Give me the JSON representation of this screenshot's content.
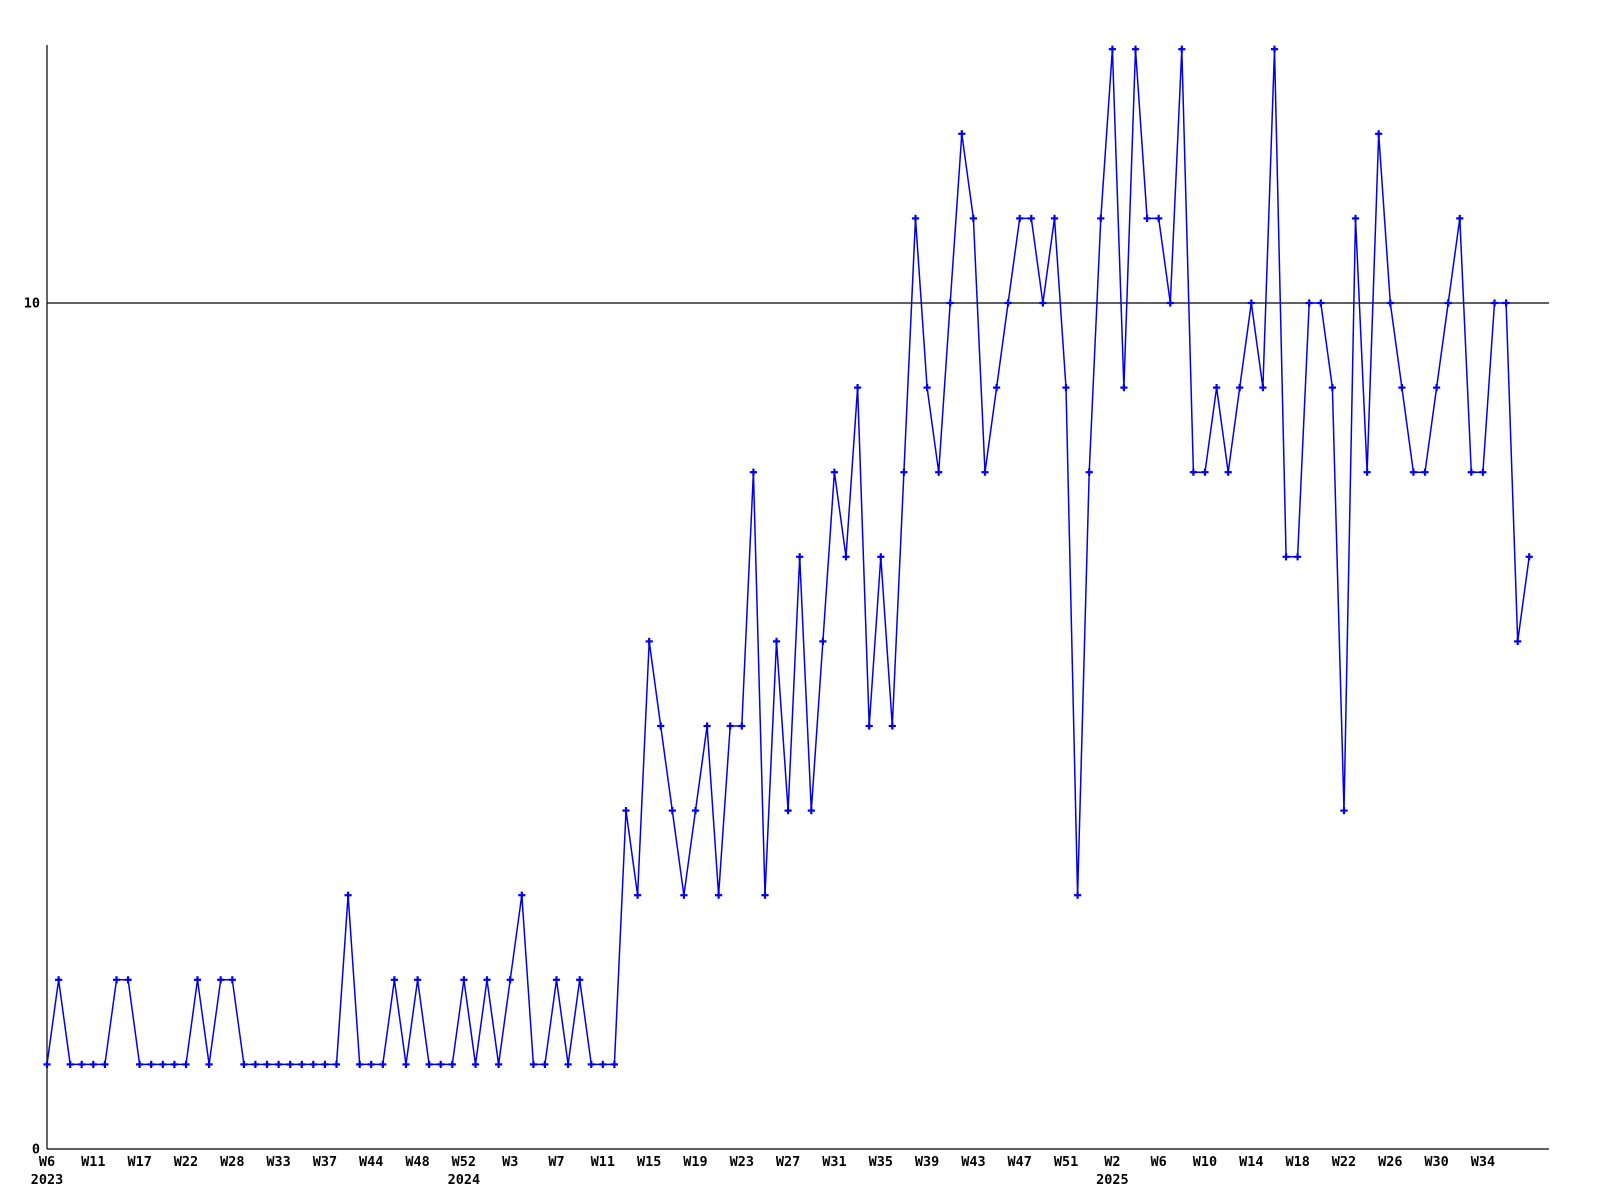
{
  "chart_data": {
    "type": "line",
    "title": "",
    "xlabel": "",
    "ylabel": "",
    "x_unit": "ISO week",
    "legend": "none",
    "grid": "reference line at y=10 only",
    "ylim": [
      0,
      13.2
    ],
    "reference_line_value": 10,
    "colors": {
      "background": "#ffffff",
      "line": "#0000ee",
      "axis": "#000000",
      "text": "#000000"
    },
    "marker": "plus",
    "y_ticks": [
      {
        "v": 0,
        "label": "0"
      },
      {
        "v": 10,
        "label": "10"
      }
    ],
    "x_tick_labels": [
      {
        "slot": 0,
        "label": "W6",
        "year": "2023"
      },
      {
        "slot": 4,
        "label": "W11"
      },
      {
        "slot": 8,
        "label": "W17"
      },
      {
        "slot": 12,
        "label": "W22"
      },
      {
        "slot": 16,
        "label": "W28"
      },
      {
        "slot": 20,
        "label": "W33"
      },
      {
        "slot": 24,
        "label": "W37"
      },
      {
        "slot": 28,
        "label": "W44"
      },
      {
        "slot": 32,
        "label": "W48"
      },
      {
        "slot": 36,
        "label": "W52",
        "year": "2024"
      },
      {
        "slot": 40,
        "label": "W3"
      },
      {
        "slot": 44,
        "label": "W7"
      },
      {
        "slot": 48,
        "label": "W11"
      },
      {
        "slot": 52,
        "label": "W15"
      },
      {
        "slot": 56,
        "label": "W19"
      },
      {
        "slot": 60,
        "label": "W23"
      },
      {
        "slot": 64,
        "label": "W27"
      },
      {
        "slot": 68,
        "label": "W31"
      },
      {
        "slot": 72,
        "label": "W35"
      },
      {
        "slot": 76,
        "label": "W39"
      },
      {
        "slot": 80,
        "label": "W43"
      },
      {
        "slot": 84,
        "label": "W47"
      },
      {
        "slot": 88,
        "label": "W51"
      },
      {
        "slot": 92,
        "label": "W2",
        "year": "2025"
      },
      {
        "slot": 96,
        "label": "W6"
      },
      {
        "slot": 100,
        "label": "W10"
      },
      {
        "slot": 104,
        "label": "W14"
      },
      {
        "slot": 108,
        "label": "W18"
      },
      {
        "slot": 112,
        "label": "W22"
      },
      {
        "slot": 116,
        "label": "W26"
      },
      {
        "slot": 120,
        "label": "W30"
      },
      {
        "slot": 124,
        "label": "W34"
      }
    ],
    "values": [
      1,
      2,
      1,
      1,
      1,
      1,
      2,
      2,
      1,
      1,
      1,
      1,
      1,
      2,
      1,
      2,
      2,
      1,
      1,
      1,
      1,
      1,
      1,
      1,
      1,
      1,
      3,
      1,
      1,
      1,
      2,
      1,
      2,
      1,
      1,
      1,
      2,
      1,
      2,
      1,
      2,
      3,
      1,
      1,
      2,
      1,
      2,
      1,
      1,
      1,
      4,
      3,
      6,
      5,
      4,
      3,
      4,
      5,
      3,
      5,
      5,
      8,
      3,
      6,
      4,
      7,
      4,
      6,
      8,
      7,
      9,
      5,
      7,
      5,
      8,
      11,
      9,
      8,
      10,
      12,
      11,
      8,
      9,
      10,
      11,
      11,
      10,
      11,
      9,
      3,
      8,
      11,
      13,
      9,
      13,
      11,
      11,
      10,
      13,
      8,
      8,
      9,
      8,
      9,
      10,
      9,
      13,
      7,
      7,
      10,
      10,
      9,
      4,
      11,
      8,
      12,
      10,
      9,
      8,
      8,
      9,
      10,
      11,
      8,
      8,
      10,
      10,
      6,
      7
    ]
  }
}
